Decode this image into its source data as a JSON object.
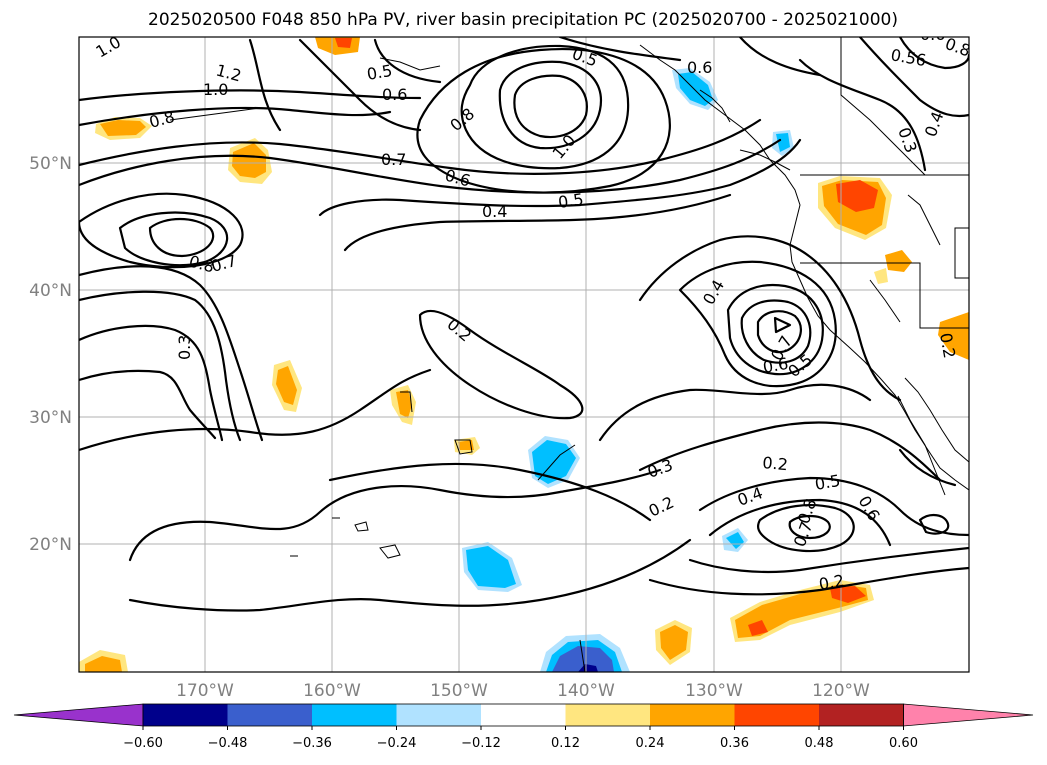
{
  "title": "2025020500 F048 850 hPa PV, river basin precipitation PC (2025020700 - 2025021000)",
  "lat_labels": [
    "50°N",
    "40°N",
    "30°N",
    "20°N"
  ],
  "lon_labels": [
    "170°W",
    "160°W",
    "150°W",
    "140°W",
    "130°W",
    "120°W"
  ],
  "colorbar": {
    "ticks": [
      "−0.60",
      "−0.48",
      "−0.36",
      "−0.24",
      "−0.12",
      "0.12",
      "0.24",
      "0.36",
      "0.48",
      "0.60"
    ],
    "colors": [
      "#9932cc",
      "#00008b",
      "#3a5fcd",
      "#00bfff",
      "#b0e2ff",
      "#ffffff",
      "#ffe680",
      "#ffa500",
      "#ff4500",
      "#b22222",
      "#ff82ab"
    ]
  },
  "contour_labels": [
    "1.0",
    "1.2",
    "1.0",
    "0.8",
    "0.5",
    "0.6",
    "0.5",
    "0.6",
    "0.8",
    "1.0",
    "0.7",
    "0.6",
    "0.5",
    "0.4",
    "0.6",
    "0.56",
    "0.8",
    "0.3",
    "0.4",
    "0.8",
    "0.7",
    "0.3",
    "0.2",
    "0.4",
    "0.7",
    "0.6",
    "0.5",
    "0.2",
    "0.3",
    "0.2",
    "0.4",
    "0.5",
    "0.6",
    "0.8",
    "0.7",
    "0.2",
    "0.2"
  ]
}
